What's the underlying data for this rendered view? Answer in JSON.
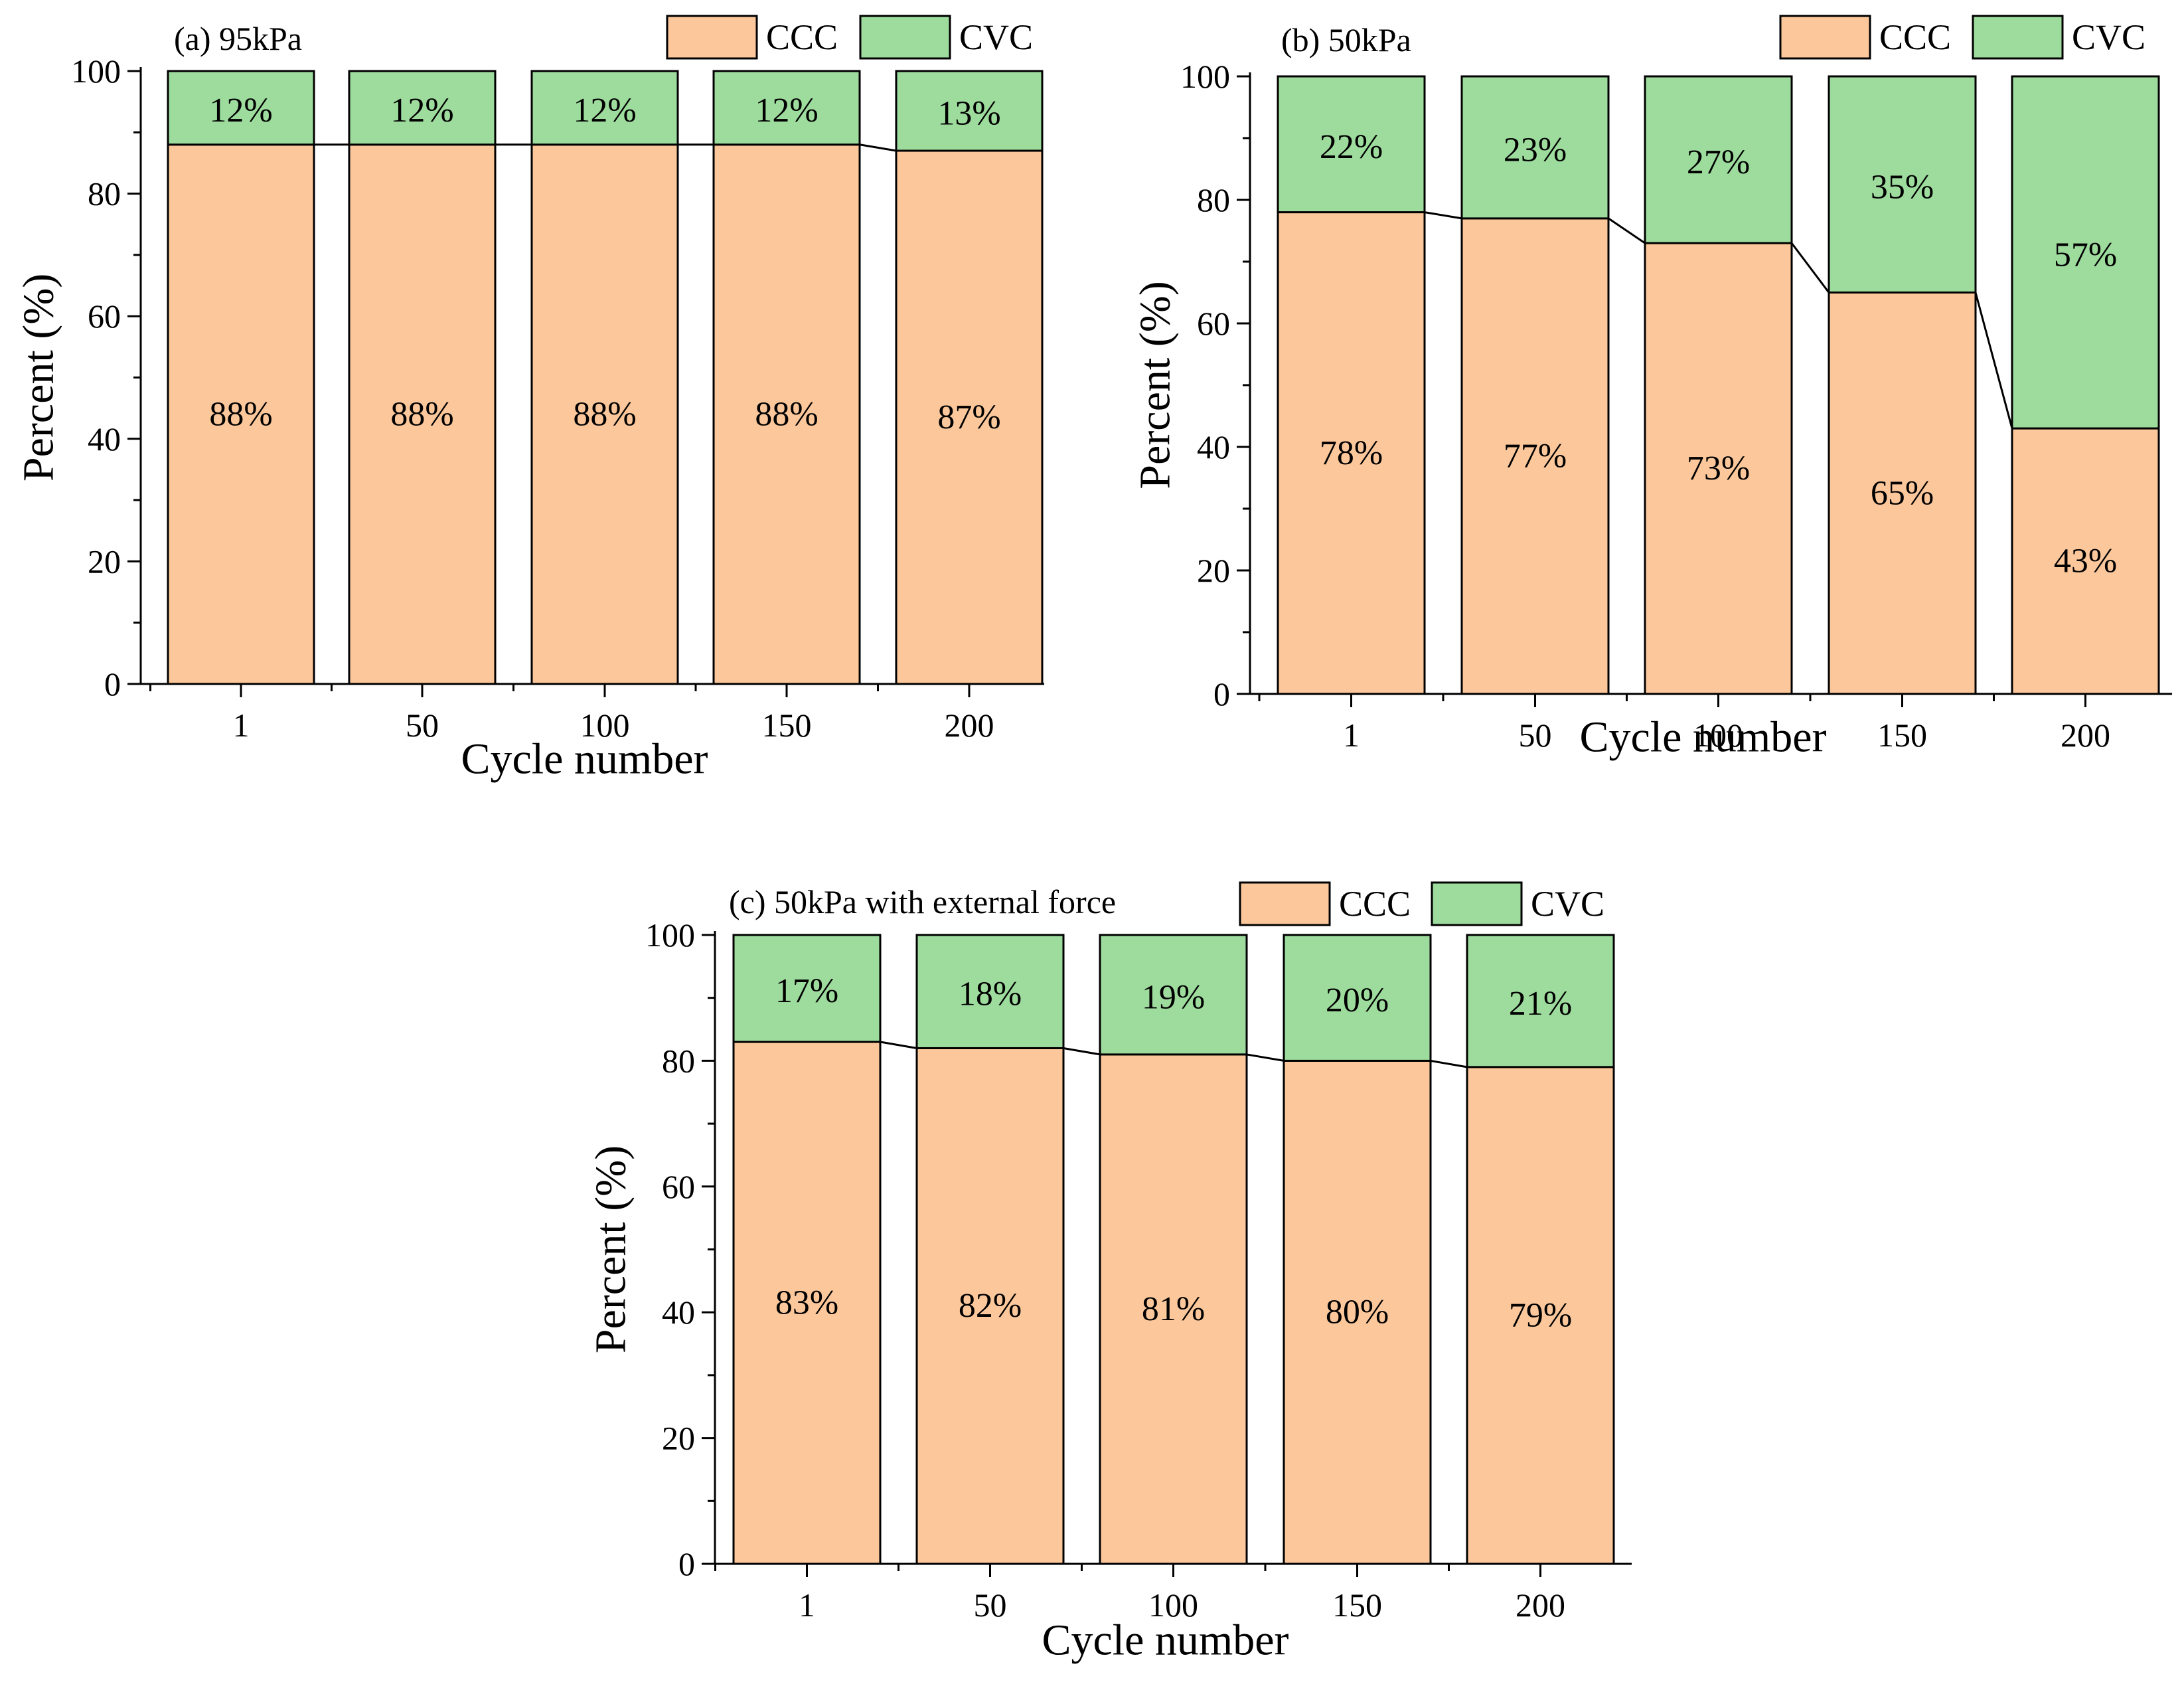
{
  "colors": {
    "ccc": "#fcc89b",
    "cvc": "#9edc9e",
    "edge": "#000000"
  },
  "chart_data": [
    {
      "type": "bar",
      "stacked": true,
      "title": "(a) 95kPa",
      "xlabel": "Cycle number",
      "ylabel": "Percent (%)",
      "ylim": [
        0,
        100
      ],
      "yticks": [
        "0",
        "20",
        "40",
        "60",
        "80",
        "100"
      ],
      "categories": [
        "1",
        "50",
        "100",
        "150",
        "200"
      ],
      "legend_position": "top-right",
      "series": [
        {
          "name": "CCC",
          "values": [
            88,
            88,
            88,
            88,
            87
          ],
          "labels": [
            "88%",
            "88%",
            "88%",
            "88%",
            "87%"
          ]
        },
        {
          "name": "CVC",
          "values": [
            12,
            12,
            12,
            12,
            13
          ],
          "labels": [
            "12%",
            "12%",
            "12%",
            "12%",
            "13%"
          ]
        }
      ]
    },
    {
      "type": "bar",
      "stacked": true,
      "title": "(b) 50kPa",
      "xlabel": "Cycle number",
      "ylabel": "Percent (%)",
      "ylim": [
        0,
        100
      ],
      "yticks": [
        "0",
        "20",
        "40",
        "60",
        "80",
        "100"
      ],
      "categories": [
        "1",
        "50",
        "100",
        "150",
        "200"
      ],
      "legend_position": "top-right",
      "series": [
        {
          "name": "CCC",
          "values": [
            78,
            77,
            73,
            65,
            43
          ],
          "labels": [
            "78%",
            "77%",
            "73%",
            "65%",
            "43%"
          ]
        },
        {
          "name": "CVC",
          "values": [
            22,
            23,
            27,
            35,
            57
          ],
          "labels": [
            "22%",
            "23%",
            "27%",
            "35%",
            "57%"
          ]
        }
      ]
    },
    {
      "type": "bar",
      "stacked": true,
      "title": "(c) 50kPa with external force",
      "xlabel": "Cycle number",
      "ylabel": "Percent (%)",
      "ylim": [
        0,
        100
      ],
      "yticks": [
        "0",
        "20",
        "40",
        "60",
        "80",
        "100"
      ],
      "categories": [
        "1",
        "50",
        "100",
        "150",
        "200"
      ],
      "legend_position": "top-right",
      "series": [
        {
          "name": "CCC",
          "values": [
            83,
            82,
            81,
            80,
            79
          ],
          "labels": [
            "83%",
            "82%",
            "81%",
            "80%",
            "79%"
          ]
        },
        {
          "name": "CVC",
          "values": [
            17,
            18,
            19,
            20,
            21
          ],
          "labels": [
            "17%",
            "18%",
            "19%",
            "20%",
            "21%"
          ]
        }
      ]
    }
  ]
}
